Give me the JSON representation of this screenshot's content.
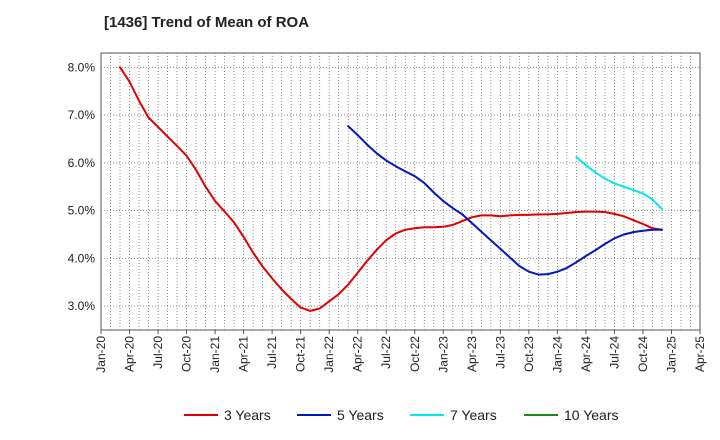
{
  "chart_data": {
    "type": "line",
    "title": "[1436]  Trend of Mean of ROA",
    "xlabel": "",
    "ylabel": "",
    "x_tick_labels": [
      "Jan-20",
      "Apr-20",
      "Jul-20",
      "Oct-20",
      "Jan-21",
      "Apr-21",
      "Jul-21",
      "Oct-21",
      "Jan-22",
      "Apr-22",
      "Jul-22",
      "Oct-22",
      "Jan-23",
      "Apr-23",
      "Jul-23",
      "Oct-23",
      "Jan-24",
      "Apr-24",
      "Jul-24",
      "Oct-24",
      "Jan-25",
      "Apr-25"
    ],
    "y_tick_labels": [
      "3.0%",
      "4.0%",
      "5.0%",
      "6.0%",
      "7.0%",
      "8.0%"
    ],
    "y_ticks": [
      3.0,
      4.0,
      5.0,
      6.0,
      7.0,
      8.0
    ],
    "xlim": [
      "2020-01",
      "2025-04"
    ],
    "ylim": [
      2.5,
      8.3
    ],
    "grid": "dotted",
    "legend_position": "bottom",
    "series": [
      {
        "name": "3 Years",
        "color": "#e00000",
        "points": [
          [
            "2020-03",
            8.0
          ],
          [
            "2020-04",
            7.7
          ],
          [
            "2020-05",
            7.3
          ],
          [
            "2020-06",
            6.95
          ],
          [
            "2020-07",
            6.75
          ],
          [
            "2020-08",
            6.55
          ],
          [
            "2020-09",
            6.35
          ],
          [
            "2020-10",
            6.15
          ],
          [
            "2020-11",
            5.85
          ],
          [
            "2020-12",
            5.5
          ],
          [
            "2021-01",
            5.2
          ],
          [
            "2021-02",
            4.98
          ],
          [
            "2021-03",
            4.75
          ],
          [
            "2021-04",
            4.45
          ],
          [
            "2021-05",
            4.12
          ],
          [
            "2021-06",
            3.83
          ],
          [
            "2021-07",
            3.58
          ],
          [
            "2021-08",
            3.35
          ],
          [
            "2021-09",
            3.15
          ],
          [
            "2021-10",
            2.97
          ],
          [
            "2021-11",
            2.9
          ],
          [
            "2021-12",
            2.95
          ],
          [
            "2022-01",
            3.1
          ],
          [
            "2022-02",
            3.25
          ],
          [
            "2022-03",
            3.45
          ],
          [
            "2022-04",
            3.7
          ],
          [
            "2022-05",
            3.95
          ],
          [
            "2022-06",
            4.18
          ],
          [
            "2022-07",
            4.38
          ],
          [
            "2022-08",
            4.52
          ],
          [
            "2022-09",
            4.6
          ],
          [
            "2022-10",
            4.63
          ],
          [
            "2022-11",
            4.65
          ],
          [
            "2022-12",
            4.65
          ],
          [
            "2023-01",
            4.66
          ],
          [
            "2023-02",
            4.7
          ],
          [
            "2023-03",
            4.78
          ],
          [
            "2023-04",
            4.86
          ],
          [
            "2023-05",
            4.9
          ],
          [
            "2023-06",
            4.9
          ],
          [
            "2023-07",
            4.88
          ],
          [
            "2023-08",
            4.9
          ],
          [
            "2023-09",
            4.91
          ],
          [
            "2023-10",
            4.91
          ],
          [
            "2023-11",
            4.92
          ],
          [
            "2023-12",
            4.92
          ],
          [
            "2024-01",
            4.93
          ],
          [
            "2024-02",
            4.95
          ],
          [
            "2024-03",
            4.97
          ],
          [
            "2024-04",
            4.98
          ],
          [
            "2024-05",
            4.98
          ],
          [
            "2024-06",
            4.97
          ],
          [
            "2024-07",
            4.93
          ],
          [
            "2024-08",
            4.88
          ],
          [
            "2024-09",
            4.8
          ],
          [
            "2024-10",
            4.72
          ],
          [
            "2024-11",
            4.63
          ],
          [
            "2024-12",
            4.6
          ]
        ]
      },
      {
        "name": "5 Years",
        "color": "#0018c0",
        "points": [
          [
            "2022-03",
            6.77
          ],
          [
            "2022-04",
            6.58
          ],
          [
            "2022-05",
            6.38
          ],
          [
            "2022-06",
            6.2
          ],
          [
            "2022-07",
            6.05
          ],
          [
            "2022-08",
            5.93
          ],
          [
            "2022-09",
            5.82
          ],
          [
            "2022-10",
            5.72
          ],
          [
            "2022-11",
            5.58
          ],
          [
            "2022-12",
            5.38
          ],
          [
            "2023-01",
            5.2
          ],
          [
            "2023-02",
            5.05
          ],
          [
            "2023-03",
            4.92
          ],
          [
            "2023-04",
            4.74
          ],
          [
            "2023-05",
            4.56
          ],
          [
            "2023-06",
            4.38
          ],
          [
            "2023-07",
            4.2
          ],
          [
            "2023-08",
            4.02
          ],
          [
            "2023-09",
            3.84
          ],
          [
            "2023-10",
            3.72
          ],
          [
            "2023-11",
            3.66
          ],
          [
            "2023-12",
            3.67
          ],
          [
            "2024-01",
            3.72
          ],
          [
            "2024-02",
            3.8
          ],
          [
            "2024-03",
            3.92
          ],
          [
            "2024-04",
            4.05
          ],
          [
            "2024-05",
            4.17
          ],
          [
            "2024-06",
            4.3
          ],
          [
            "2024-07",
            4.42
          ],
          [
            "2024-08",
            4.5
          ],
          [
            "2024-09",
            4.55
          ],
          [
            "2024-10",
            4.58
          ],
          [
            "2024-11",
            4.6
          ],
          [
            "2024-12",
            4.6
          ]
        ]
      },
      {
        "name": "7 Years",
        "color": "#00e8f0",
        "points": [
          [
            "2024-03",
            6.12
          ],
          [
            "2024-04",
            5.95
          ],
          [
            "2024-05",
            5.8
          ],
          [
            "2024-06",
            5.67
          ],
          [
            "2024-07",
            5.57
          ],
          [
            "2024-08",
            5.5
          ],
          [
            "2024-09",
            5.43
          ],
          [
            "2024-10",
            5.36
          ],
          [
            "2024-11",
            5.23
          ],
          [
            "2024-12",
            5.03
          ]
        ]
      },
      {
        "name": "10 Years",
        "color": "#1a8a1a",
        "points": []
      }
    ]
  }
}
